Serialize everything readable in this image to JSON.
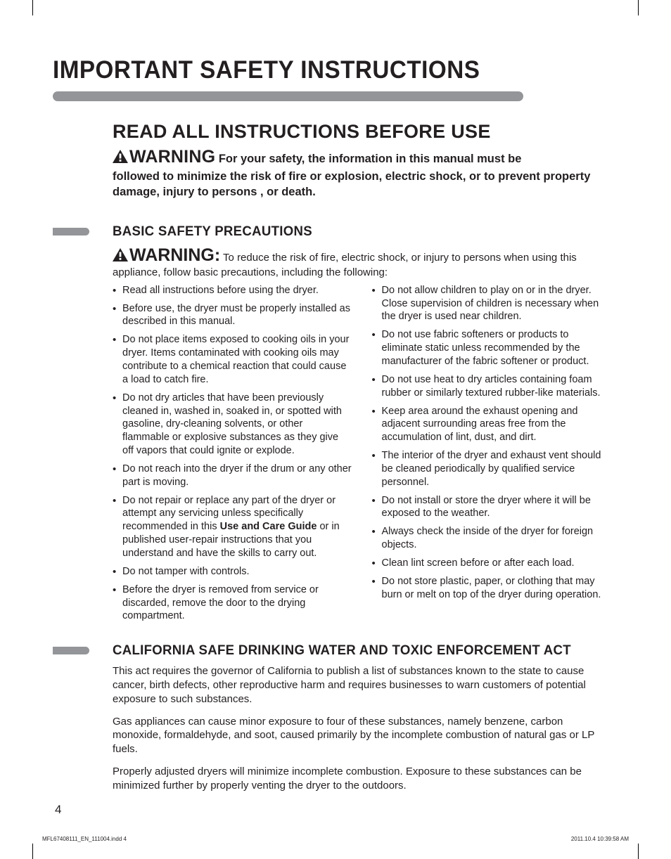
{
  "page": {
    "title": "IMPORTANT SAFETY INSTRUCTIONS",
    "number": "4"
  },
  "colors": {
    "text": "#231f20",
    "rule": "#939598",
    "bg": "#ffffff"
  },
  "main": {
    "heading": "READ ALL INSTRUCTIONS BEFORE USE",
    "warning_label": "WARNING",
    "warning_lead": " For your safety, the information in this manual must be",
    "warning_body": "followed to minimize the risk of fire or explosion, electric shock, or to prevent property damage, injury to persons , or death."
  },
  "section1": {
    "title": "BASIC SAFETY PRECAUTIONS",
    "warning_label": "WARNING:",
    "warning_lead": " To reduce the risk of fire, electric shock, or injury to persons  when using this",
    "warning_cont": "appliance, follow basic precautions, including the following:",
    "left": [
      "Read all instructions before using the dryer.",
      "Before use, the dryer must be properly installed as described in this manual.",
      "Do not place items exposed to cooking oils in your dryer. Items contaminated with cooking oils may contribute to a chemical reaction that could cause a load to catch fire.",
      "Do not dry articles that have been previously cleaned in, washed in, soaked in, or spotted with gasoline, dry-cleaning solvents, or other flammable or explosive substances as they give off vapors that could ignite or explode.",
      "Do not reach into the dryer if the drum or any other part is moving.",
      "Do not repair or replace any part of the dryer or attempt any servicing unless specifically recommended in this <b>Use and Care Guide</b> or in published user-repair instructions that you understand and have the skills to carry out.",
      "Do not tamper with controls.",
      "Before the dryer is removed from service or discarded, remove the door to the drying compartment."
    ],
    "right": [
      "Do not allow children to play on or in the dryer. Close supervision of children is necessary when the dryer is used near children.",
      "Do not use fabric softeners or products to eliminate static unless recommended by the manufacturer of the fabric softener or product.",
      "Do not use heat to dry articles containing foam rubber or similarly textured rubber-like materials.",
      "Keep area around the exhaust opening and adjacent surrounding areas free from the accumulation of lint, dust, and dirt.",
      "The interior of the dryer and exhaust vent should be cleaned periodically by qualified service personnel.",
      "Do not install or store the dryer where it will be exposed to the weather.",
      "Always check the inside of the dryer for foreign objects.",
      "Clean lint screen before or after each load.",
      "Do not store plastic, paper, or clothing that may burn or melt on top of the dryer during operation."
    ]
  },
  "section2": {
    "title": "CALIFORNIA SAFE DRINKING WATER AND TOXIC ENFORCEMENT ACT",
    "p1": "This act requires the governor of California to publish a list of substances known to the state to cause cancer, birth defects, other reproductive harm and requires businesses to warn customers of potential exposure to such substances.",
    "p2": "Gas appliances can cause minor exposure to four of these substances, namely benzene, carbon monoxide, formaldehyde, and soot, caused primarily by the incomplete combustion of natural gas or LP fuels.",
    "p3": "Properly adjusted dryers will minimize incomplete combustion. Exposure to these substances can be minimized further by properly venting the dryer to the outdoors."
  },
  "footer": {
    "left": "MFL67408111_EN_111004.indd   4",
    "right": "2011.10.4   10:39:58 AM"
  },
  "icons": {
    "triangle": "warning-triangle-icon"
  },
  "typography": {
    "title_fontsize": 35,
    "heading_fontsize": 27,
    "warning_label_fontsize": 25,
    "body_fontsize": 15,
    "list_fontsize": 14.5,
    "section_head_fontsize": 19
  }
}
